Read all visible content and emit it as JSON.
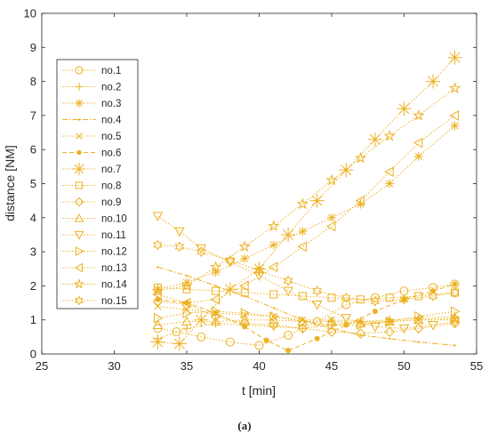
{
  "chart_data": {
    "type": "line",
    "xlabel": "t [min]",
    "ylabel": "distance [NM]",
    "caption": "(a)",
    "xlim": [
      25,
      55
    ],
    "ylim": [
      0,
      10
    ],
    "xticks": [
      "25",
      "30",
      "35",
      "40",
      "45",
      "50",
      "55"
    ],
    "yticks": [
      "0",
      "1",
      "2",
      "3",
      "4",
      "5",
      "6",
      "7",
      "8",
      "9",
      "10"
    ],
    "grid": false,
    "legend_position": "top-left",
    "color": "#EDB120",
    "series": [
      {
        "name": "no.1",
        "marker": "circle",
        "line": "dotted",
        "x": [
          33,
          34.3,
          36,
          38,
          40,
          42,
          44,
          46,
          48,
          50,
          52,
          53.5
        ],
        "y": [
          0.75,
          0.65,
          0.5,
          0.35,
          0.25,
          0.55,
          0.95,
          1.45,
          1.65,
          1.85,
          1.95,
          2.05
        ]
      },
      {
        "name": "no.2",
        "marker": "plus",
        "line": "dotted",
        "x": [
          33,
          35,
          37,
          39,
          41,
          43,
          45,
          47,
          49,
          51,
          53.5
        ],
        "y": [
          0.45,
          0.75,
          0.9,
          0.85,
          0.8,
          0.75,
          0.85,
          0.95,
          1.0,
          1.05,
          1.1
        ]
      },
      {
        "name": "no.3",
        "marker": "asterisk",
        "line": "dotted",
        "x": [
          33,
          35,
          37,
          39,
          41,
          43,
          45,
          47,
          49,
          51,
          53.5
        ],
        "y": [
          1.9,
          2.1,
          2.4,
          2.8,
          3.2,
          3.6,
          4.0,
          4.4,
          5.0,
          5.8,
          6.7
        ]
      },
      {
        "name": "no.4",
        "marker": "point",
        "line": "dashdot",
        "x": [
          33,
          35,
          37,
          39,
          41,
          43,
          45,
          47,
          49,
          51,
          53.5
        ],
        "y": [
          2.55,
          2.3,
          2.0,
          1.7,
          1.35,
          1.0,
          0.75,
          0.55,
          0.45,
          0.35,
          0.25
        ]
      },
      {
        "name": "no.5",
        "marker": "x",
        "line": "dotted",
        "x": [
          33,
          35,
          37,
          39,
          41,
          43,
          45,
          47,
          49,
          51,
          53.5
        ],
        "y": [
          1.4,
          1.3,
          1.2,
          1.15,
          1.1,
          1.0,
          1.0,
          0.95,
          0.95,
          1.0,
          1.0
        ]
      },
      {
        "name": "no.6",
        "marker": "dot",
        "line": "dashed",
        "x": [
          33,
          35,
          37,
          39,
          40.5,
          42,
          44,
          46,
          48,
          50,
          52,
          53.5
        ],
        "y": [
          1.6,
          1.5,
          1.2,
          0.8,
          0.4,
          0.1,
          0.45,
          0.85,
          1.25,
          1.6,
          1.85,
          2.05
        ]
      },
      {
        "name": "no.7",
        "marker": "star",
        "line": "dotted",
        "x": [
          33,
          34.5,
          36,
          38,
          40,
          42,
          44,
          46,
          48,
          50,
          52,
          53.5
        ],
        "y": [
          0.35,
          0.3,
          1.0,
          1.9,
          2.5,
          3.5,
          4.5,
          5.4,
          6.3,
          7.2,
          8.0,
          8.7
        ]
      },
      {
        "name": "no.8",
        "marker": "square",
        "line": "dotted",
        "x": [
          33,
          35,
          37,
          39,
          41,
          43,
          45,
          47,
          49,
          51,
          53.5
        ],
        "y": [
          1.95,
          1.9,
          1.85,
          1.8,
          1.75,
          1.7,
          1.65,
          1.6,
          1.65,
          1.7,
          1.8
        ]
      },
      {
        "name": "no.9",
        "marker": "diamond",
        "line": "dotted",
        "x": [
          33,
          35,
          37,
          39,
          41,
          43,
          45,
          47,
          49,
          51,
          53.5
        ],
        "y": [
          1.55,
          1.45,
          1.1,
          0.9,
          0.85,
          0.75,
          0.65,
          0.6,
          0.65,
          0.75,
          0.9
        ]
      },
      {
        "name": "no.10",
        "marker": "triangle-up",
        "line": "dotted",
        "x": [
          33,
          35,
          37,
          39,
          41,
          43,
          45,
          47,
          49,
          51,
          53.5
        ],
        "y": [
          0.85,
          0.95,
          0.95,
          1.0,
          1.0,
          0.95,
          0.95,
          0.9,
          0.95,
          1.0,
          1.05
        ]
      },
      {
        "name": "no.11",
        "marker": "triangle-down",
        "line": "dotted",
        "x": [
          33,
          34.5,
          36,
          38,
          40,
          42,
          44,
          46,
          48,
          50,
          52,
          53.5
        ],
        "y": [
          4.05,
          3.6,
          3.1,
          2.7,
          2.3,
          1.85,
          1.45,
          1.05,
          0.8,
          0.75,
          0.85,
          0.95
        ]
      },
      {
        "name": "no.12",
        "marker": "triangle-right",
        "line": "dotted",
        "x": [
          33,
          35,
          37,
          39,
          41,
          43,
          45,
          47,
          49,
          51,
          53.5
        ],
        "y": [
          1.05,
          1.2,
          1.25,
          1.2,
          1.1,
          0.95,
          0.85,
          0.85,
          0.95,
          1.1,
          1.25
        ]
      },
      {
        "name": "no.13",
        "marker": "triangle-left",
        "line": "dotted",
        "x": [
          33,
          35,
          37,
          39,
          41,
          43,
          45,
          47,
          49,
          51,
          53.5
        ],
        "y": [
          1.75,
          1.5,
          1.6,
          2.0,
          2.55,
          3.15,
          3.75,
          4.5,
          5.35,
          6.2,
          7.0
        ]
      },
      {
        "name": "no.14",
        "marker": "pentagram",
        "line": "dotted",
        "x": [
          33,
          35,
          37,
          39,
          41,
          43,
          45,
          47,
          49,
          51,
          53.5
        ],
        "y": [
          1.85,
          2.0,
          2.55,
          3.15,
          3.75,
          4.4,
          5.1,
          5.75,
          6.4,
          7.0,
          7.8
        ]
      },
      {
        "name": "no.15",
        "marker": "hexagram",
        "line": "dotted",
        "x": [
          33,
          34.5,
          36,
          38,
          40,
          42,
          44,
          46,
          48,
          50,
          52,
          53.5
        ],
        "y": [
          3.2,
          3.15,
          3.0,
          2.75,
          2.45,
          2.15,
          1.85,
          1.65,
          1.55,
          1.6,
          1.7,
          1.8
        ]
      }
    ]
  }
}
